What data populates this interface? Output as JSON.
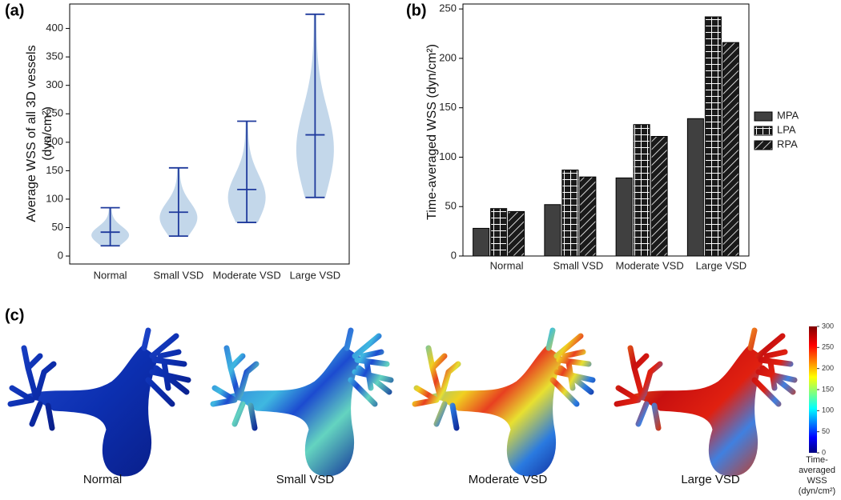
{
  "chart_data": [
    {
      "type": "violin",
      "panel": "(a)",
      "ylabel": [
        "Average WSS of all 3D vessels",
        "(dyn/cm²)"
      ],
      "categories": [
        "Normal",
        "Small VSD",
        "Moderate VSD",
        "Large VSD"
      ],
      "min": [
        18,
        35,
        59,
        103
      ],
      "median": [
        42,
        77,
        117,
        213
      ],
      "max": [
        85,
        155,
        237,
        425
      ],
      "color": "#1f3a9c",
      "fill": "#b9d0e6",
      "ylim": [
        -14,
        443
      ],
      "yticks": [
        0,
        50,
        100,
        150,
        200,
        250,
        300,
        350,
        400
      ]
    },
    {
      "type": "bar",
      "panel": "(b)",
      "ylabel": "Time-averaged WSS (dyn/cm²)",
      "categories": [
        "Normal",
        "Small VSD",
        "Moderate VSD",
        "Large VSD"
      ],
      "series": [
        {
          "name": "MPA",
          "color": "#404040",
          "pattern": "solid",
          "values": [
            28,
            52,
            79,
            139
          ]
        },
        {
          "name": "LPA",
          "color": "#1a1a1a",
          "pattern": "grid",
          "values": [
            48,
            87,
            133,
            242
          ]
        },
        {
          "name": "RPA",
          "color": "#1a1a1a",
          "pattern": "hatch",
          "values": [
            45,
            80,
            121,
            216
          ]
        }
      ],
      "legend": "right",
      "ylim": [
        0,
        255
      ],
      "yticks": [
        0,
        50,
        100,
        150,
        200,
        250
      ]
    }
  ],
  "panel_c": {
    "panel": "(c)",
    "captions": [
      "Normal",
      "Small VSD",
      "Moderate VSD",
      "Large VSD"
    ],
    "colorbar": {
      "lim": [
        0,
        300
      ],
      "ticks": [
        0,
        50,
        100,
        150,
        200,
        250,
        300
      ],
      "label": [
        "Time-",
        "averaged",
        "WSS",
        "(dyn/cm²)"
      ]
    }
  }
}
